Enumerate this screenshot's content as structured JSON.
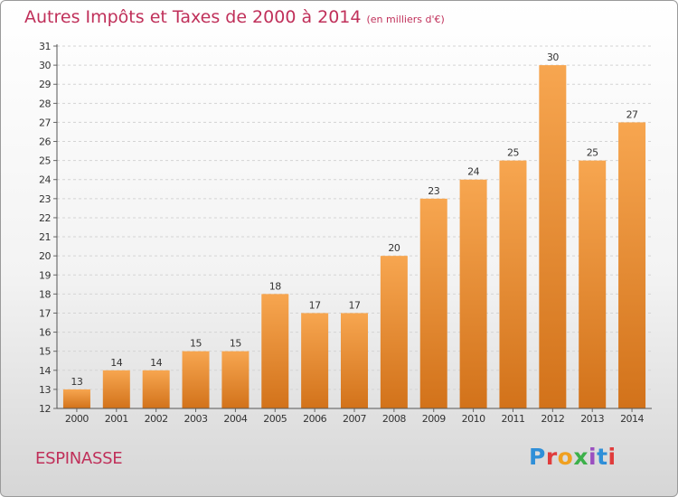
{
  "header": {
    "title": "Autres Impôts et Taxes de 2000 à 2014",
    "unit": "(en milliers d'€)"
  },
  "footer": {
    "location": "ESPINASSE",
    "brand": "Proxiti",
    "brand_colors": [
      "#2f8fd8",
      "#e03c3c",
      "#f0a020",
      "#3cb04a",
      "#9a4fc0",
      "#2f8fd8",
      "#e03c3c"
    ]
  },
  "chart_data": {
    "type": "bar",
    "title": "Autres Impôts et Taxes de 2000 à 2014",
    "categories": [
      "2000",
      "2001",
      "2002",
      "2003",
      "2004",
      "2005",
      "2006",
      "2007",
      "2008",
      "2009",
      "2010",
      "2011",
      "2012",
      "2013",
      "2014"
    ],
    "values": [
      13,
      14,
      14,
      15,
      15,
      18,
      17,
      17,
      20,
      23,
      24,
      25,
      30,
      25,
      27
    ],
    "ylim": [
      12,
      31
    ],
    "yticks": [
      12,
      13,
      14,
      15,
      16,
      17,
      18,
      19,
      20,
      21,
      22,
      23,
      24,
      25,
      26,
      27,
      28,
      29,
      30,
      31
    ],
    "grid": true,
    "bar_color_top": "#f7a650",
    "bar_color_bottom": "#d2721a"
  }
}
